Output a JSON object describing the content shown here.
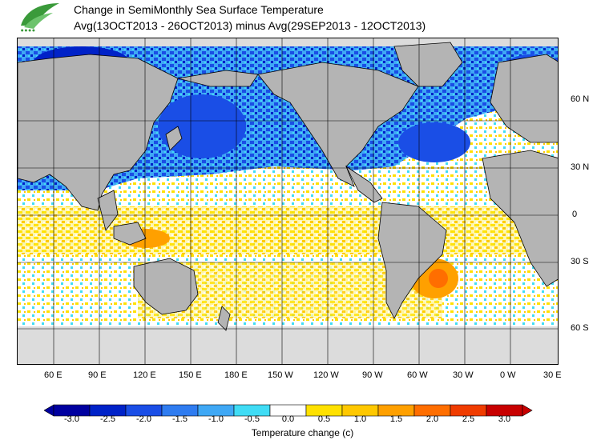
{
  "header": {
    "title_line1": "Change in SemiMonthly Sea Surface Temperature",
    "title_line2": "Avg(13OCT2013 - 26OCT2013) minus Avg(29SEP2013 - 12OCT2013)"
  },
  "map": {
    "lon_labels": [
      "60 E",
      "90 E",
      "120 E",
      "150 E",
      "180 E",
      "150 W",
      "120 W",
      "90 W",
      "60 W",
      "30 W",
      "0 W",
      "30 E"
    ],
    "lat_labels": [
      "60 N",
      "30 N",
      "0",
      "30 S",
      "60 S"
    ],
    "colors": {
      "land": "#b4b4b4",
      "ice": "#dcdcdc",
      "ocean": "#ffffff"
    }
  },
  "legend": {
    "title": "Temperature change  (c)",
    "tick_labels": [
      "-3.0",
      "-2.5",
      "-2.0",
      "-1.5",
      "-1.0",
      "-0.5",
      "0.0",
      "0.5",
      "1.0",
      "1.5",
      "2.0",
      "2.5",
      "3.0"
    ],
    "colors": [
      "#0000a0",
      "#0022c8",
      "#1a4ee6",
      "#2f7cf0",
      "#3fa8f5",
      "#40dcf5",
      "#ffffff",
      "#ffe100",
      "#ffc800",
      "#ffa000",
      "#ff6e00",
      "#f03c00",
      "#c80000"
    ]
  }
}
